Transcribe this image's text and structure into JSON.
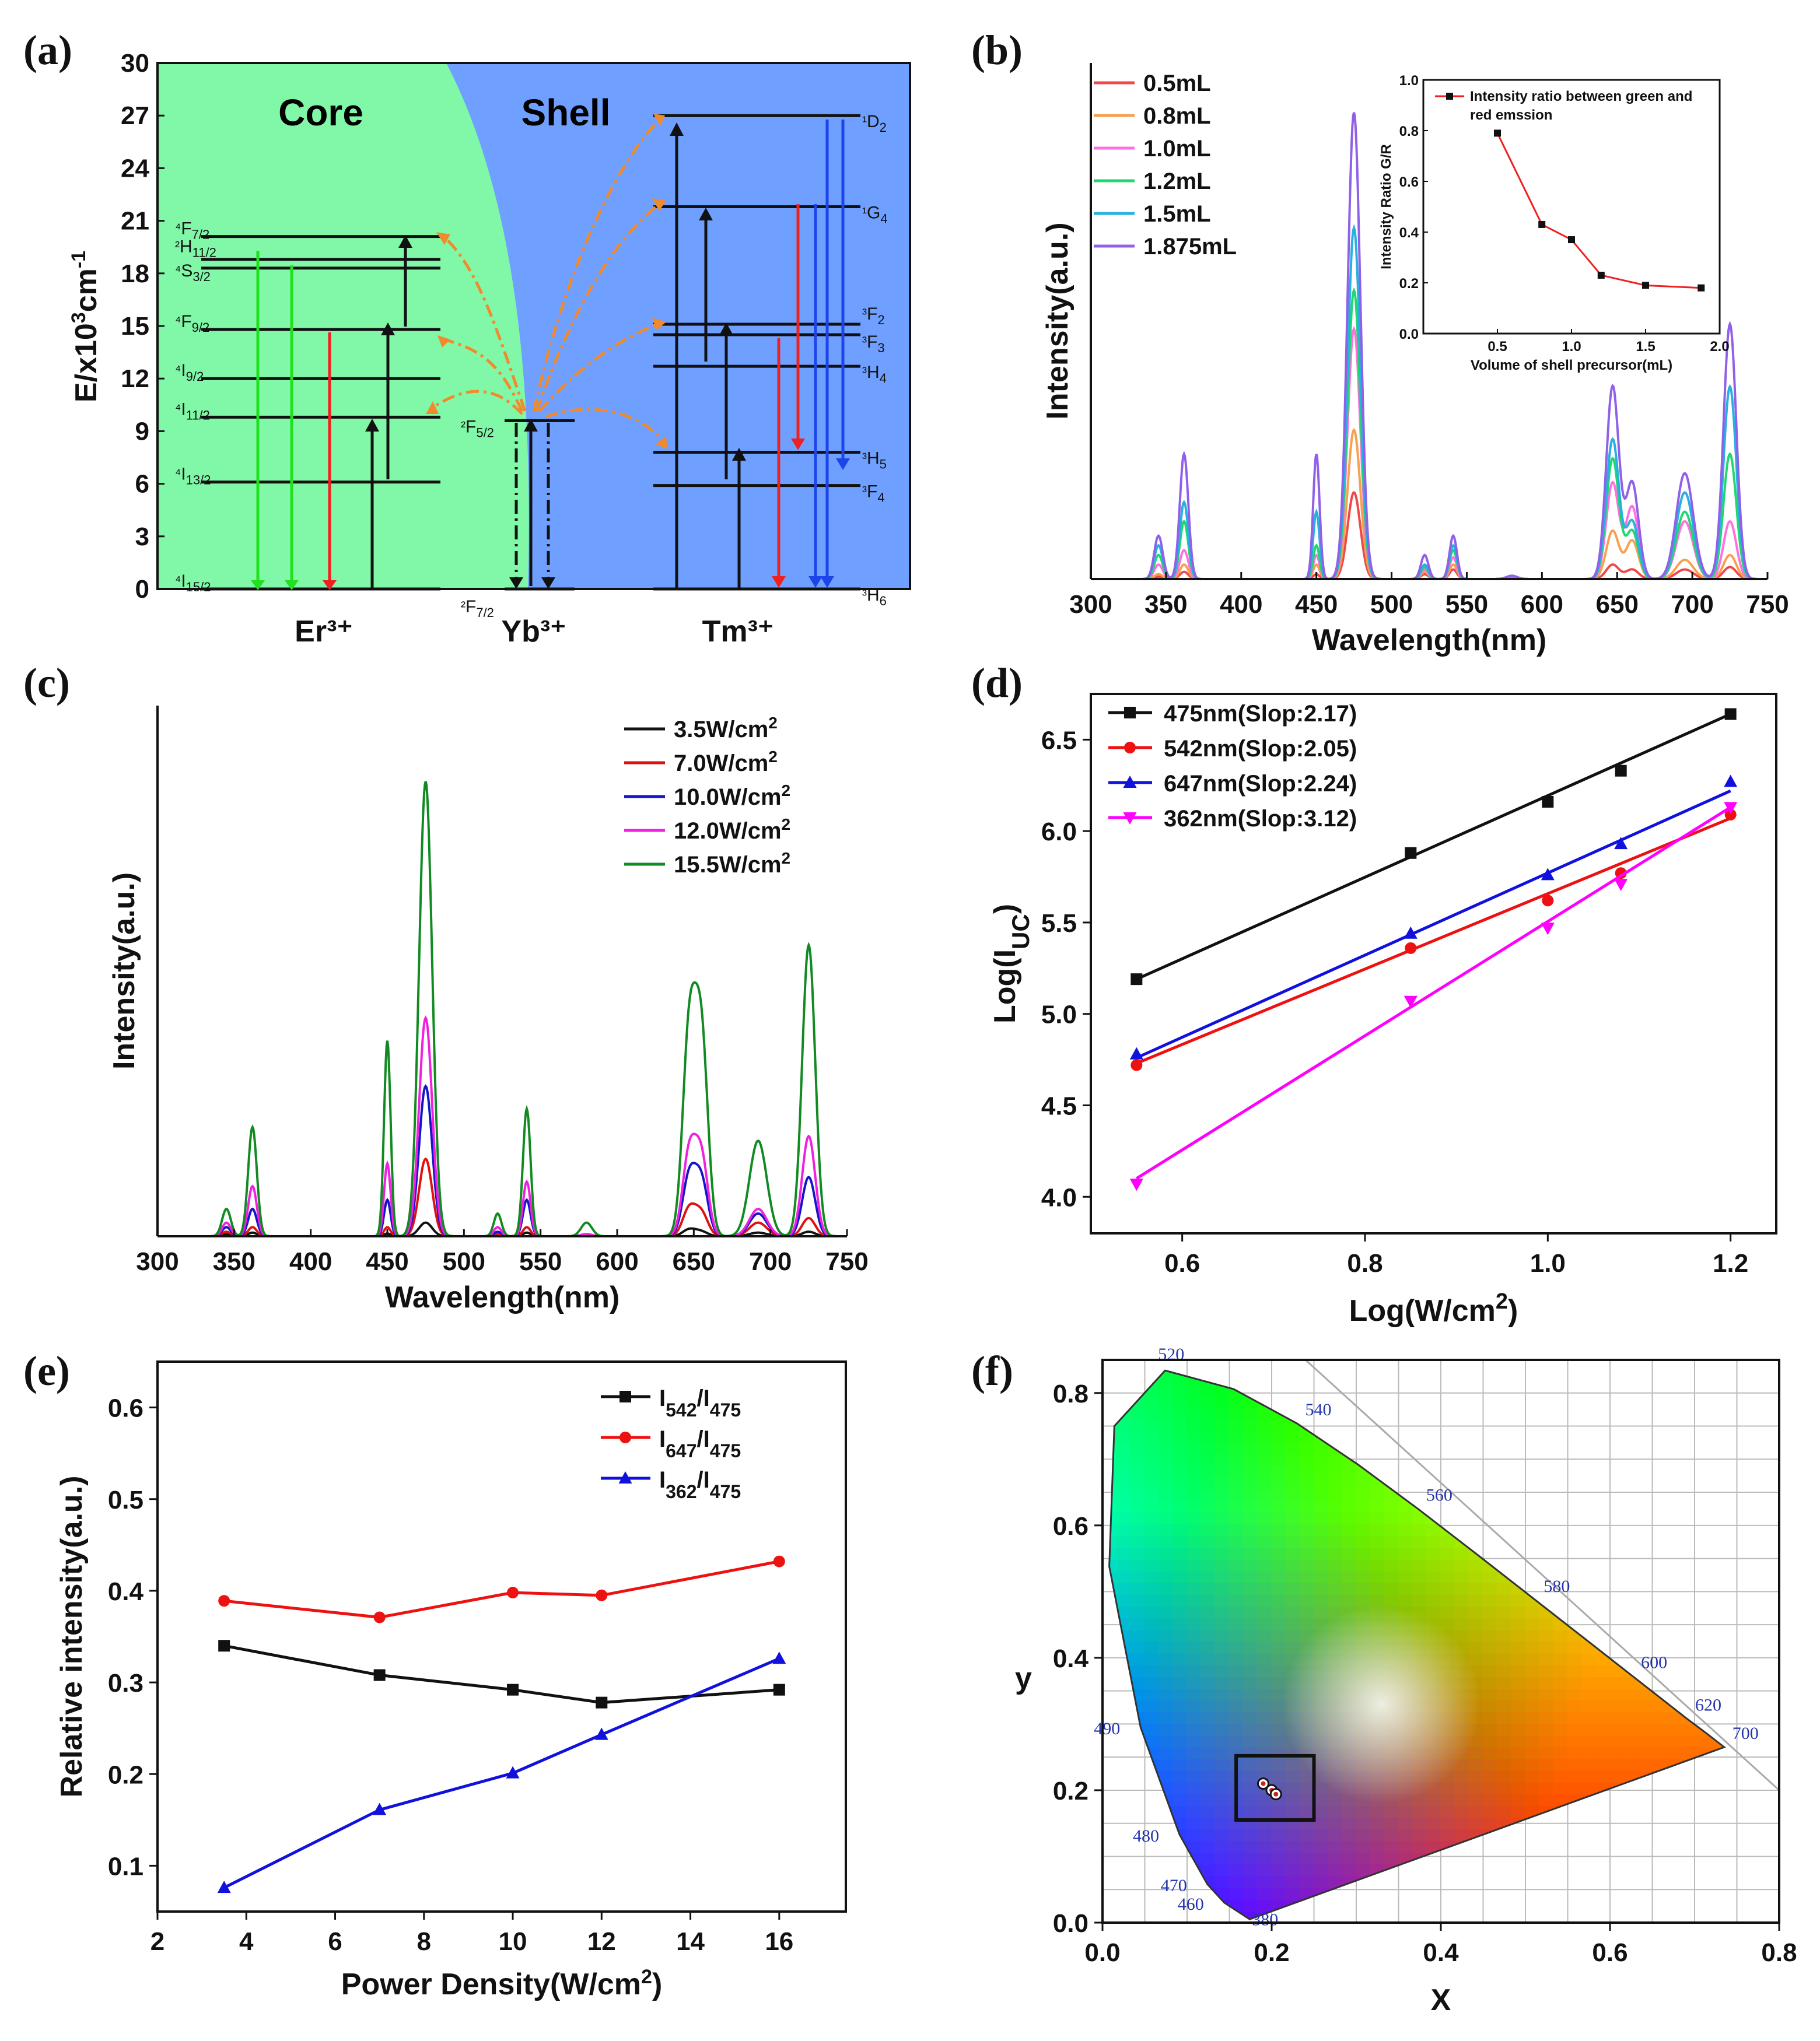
{
  "chart_data": [
    {
      "panel": "(a)",
      "type": "energy-level-diagram",
      "ylabel": "E/x10³cm⁻¹",
      "yticks": [
        0,
        3,
        6,
        9,
        12,
        15,
        18,
        21,
        24,
        27,
        30
      ],
      "regions": [
        "Core",
        "Shell"
      ],
      "ions": [
        "Er³⁺",
        "Yb³⁺",
        "Tm³⁺"
      ],
      "er_levels": [
        {
          "label": "⁴I15/2",
          "e": 0
        },
        {
          "label": "⁴I13/2",
          "e": 6.1
        },
        {
          "label": "⁴I11/2",
          "e": 9.8
        },
        {
          "label": "⁴I9/2",
          "e": 12
        },
        {
          "label": "⁴F9/2",
          "e": 14.8
        },
        {
          "label": "⁴S3/2",
          "e": 18.3
        },
        {
          "label": "²H11/2",
          "e": 18.8
        },
        {
          "label": "⁴F7/2",
          "e": 20.1
        }
      ],
      "yb_levels": [
        {
          "label": "²F7/2",
          "e": 0
        },
        {
          "label": "²F5/2",
          "e": 9.6
        }
      ],
      "tm_levels": [
        {
          "label": "³H6",
          "e": 0
        },
        {
          "label": "³F4",
          "e": 5.9
        },
        {
          "label": "³H5",
          "e": 7.8
        },
        {
          "label": "³H4",
          "e": 12.7
        },
        {
          "label": "³F3",
          "e": 14.5
        },
        {
          "label": "³F2",
          "e": 15.1
        },
        {
          "label": "¹G4",
          "e": 21.8
        },
        {
          "label": "¹D2",
          "e": 27
        }
      ]
    },
    {
      "panel": "(b)",
      "type": "line",
      "xlabel": "Wavelength(nm)",
      "ylabel": "Intensity(a.u.)",
      "xlim": [
        300,
        750
      ],
      "xticks": [
        300,
        350,
        400,
        450,
        500,
        550,
        600,
        650,
        700,
        750
      ],
      "peaks": [
        345,
        362,
        450,
        475,
        522,
        541,
        580,
        647,
        660,
        695,
        725
      ],
      "series": [
        {
          "name": "0.5mL",
          "color": "#f04848",
          "heights": [
            0.005,
            0.015,
            0.01,
            0.18,
            0.01,
            0.02,
            0.002,
            0.03,
            0.02,
            0.02,
            0.025
          ]
        },
        {
          "name": "0.8mL",
          "color": "#f6a050",
          "heights": [
            0.01,
            0.03,
            0.03,
            0.31,
            0.015,
            0.03,
            0.003,
            0.1,
            0.08,
            0.04,
            0.05
          ]
        },
        {
          "name": "1.0mL",
          "color": "#ff70e0",
          "heights": [
            0.03,
            0.06,
            0.05,
            0.52,
            0.02,
            0.045,
            0.004,
            0.2,
            0.15,
            0.12,
            0.12
          ]
        },
        {
          "name": "1.2mL",
          "color": "#20d870",
          "heights": [
            0.05,
            0.12,
            0.07,
            0.6,
            0.025,
            0.06,
            0.005,
            0.25,
            0.1,
            0.14,
            0.26
          ]
        },
        {
          "name": "1.5mL",
          "color": "#28b0e0",
          "heights": [
            0.07,
            0.16,
            0.14,
            0.73,
            0.03,
            0.07,
            0.006,
            0.29,
            0.12,
            0.18,
            0.4
          ]
        },
        {
          "name": "1.875mL",
          "color": "#9060e8",
          "heights": [
            0.09,
            0.26,
            0.26,
            0.97,
            0.05,
            0.09,
            0.007,
            0.4,
            0.2,
            0.22,
            0.53
          ]
        }
      ],
      "inset": {
        "type": "line",
        "legend": "Intensity ratio between green and red emssion",
        "xlabel": "Volume of shell precursor(mL)",
        "ylabel": "Intensity Ratio G/R",
        "xlim": [
          0,
          2.0
        ],
        "ylim": [
          0,
          1.0
        ],
        "xticks": [
          0.5,
          1.0,
          1.5,
          2.0
        ],
        "yticks": [
          0.0,
          0.2,
          0.4,
          0.6,
          0.8,
          1.0
        ],
        "x": [
          0.5,
          0.8,
          1.0,
          1.2,
          1.5,
          1.875
        ],
        "y": [
          0.79,
          0.43,
          0.37,
          0.23,
          0.19,
          0.18
        ]
      }
    },
    {
      "panel": "(c)",
      "type": "line",
      "xlabel": "Wavelength(nm)",
      "ylabel": "Intensity(a.u.)",
      "xlim": [
        300,
        750
      ],
      "xticks": [
        300,
        350,
        400,
        450,
        500,
        550,
        600,
        650,
        700,
        750
      ],
      "peaks": [
        345,
        362,
        450,
        475,
        522,
        541,
        580,
        647,
        655,
        692,
        725
      ],
      "series": [
        {
          "name": "3.5W/cm²",
          "color": "#111111",
          "heights": [
            0.004,
            0.008,
            0.006,
            0.03,
            0.003,
            0.008,
            0.001,
            0.015,
            0.01,
            0.008,
            0.01
          ]
        },
        {
          "name": "7.0W/cm²",
          "color": "#e01010",
          "heights": [
            0.01,
            0.02,
            0.02,
            0.17,
            0.005,
            0.02,
            0.002,
            0.06,
            0.05,
            0.03,
            0.04
          ]
        },
        {
          "name": "10.0W/cm²",
          "color": "#1414c8",
          "heights": [
            0.02,
            0.06,
            0.08,
            0.33,
            0.01,
            0.08,
            0.004,
            0.13,
            0.12,
            0.05,
            0.13
          ]
        },
        {
          "name": "12.0W/cm²",
          "color": "#f020e0",
          "heights": [
            0.03,
            0.11,
            0.16,
            0.48,
            0.02,
            0.12,
            0.005,
            0.18,
            0.17,
            0.06,
            0.22
          ]
        },
        {
          "name": "15.5W/cm²",
          "color": "#118a22",
          "heights": [
            0.06,
            0.24,
            0.43,
            1.0,
            0.05,
            0.28,
            0.03,
            0.44,
            0.43,
            0.21,
            0.64
          ]
        }
      ]
    },
    {
      "panel": "(d)",
      "type": "scatter",
      "xlabel": "Log(W/cm²)",
      "ylabel": "Log(I_UC)",
      "xlim": [
        0.5,
        1.25
      ],
      "ylim": [
        3.8,
        6.75
      ],
      "xticks": [
        0.6,
        0.8,
        1.0,
        1.2
      ],
      "yticks": [
        4.0,
        4.5,
        5.0,
        5.5,
        6.0,
        6.5
      ],
      "x": [
        0.55,
        0.85,
        1.0,
        1.08,
        1.2
      ],
      "series": [
        {
          "name": "475nm(Slop:2.17)",
          "color": "#111111",
          "marker": "square",
          "y": [
            5.19,
            5.88,
            6.16,
            6.33,
            6.64
          ],
          "fit": [
            5.19,
            6.64
          ]
        },
        {
          "name": "542nm(Slop:2.05)",
          "color": "#ee1111",
          "marker": "circle",
          "y": [
            4.72,
            5.36,
            5.62,
            5.77,
            6.09
          ],
          "fit": [
            4.73,
            6.07
          ]
        },
        {
          "name": "647nm(Slop:2.24)",
          "color": "#1111dd",
          "marker": "triangle",
          "y": [
            4.78,
            5.44,
            5.76,
            5.93,
            6.27
          ],
          "fit": [
            4.76,
            6.22
          ]
        },
        {
          "name": "362nm(Slop:3.12)",
          "color": "#ff00ff",
          "marker": "triangle-down",
          "y": [
            4.07,
            5.07,
            5.47,
            5.71,
            6.13
          ],
          "fit": [
            4.1,
            6.13
          ]
        }
      ]
    },
    {
      "panel": "(e)",
      "type": "line",
      "xlabel": "Power Density(W/cm²)",
      "ylabel": "Relative intensity(a.u.)",
      "xlim": [
        2,
        17.5
      ],
      "ylim": [
        0.05,
        0.65
      ],
      "xticks": [
        2,
        4,
        6,
        8,
        10,
        12,
        14,
        16
      ],
      "yticks": [
        0.1,
        0.2,
        0.3,
        0.4,
        0.5,
        0.6
      ],
      "x": [
        3.5,
        7.0,
        10.0,
        12.0,
        16.0
      ],
      "series": [
        {
          "name": "I542/I475",
          "base": "I",
          "sub1": "542",
          "sep": "/I",
          "sub2": "475",
          "color": "#111111",
          "marker": "square",
          "y": [
            0.34,
            0.308,
            0.292,
            0.278,
            0.292
          ]
        },
        {
          "name": "I647/I475",
          "base": "I",
          "sub1": "647",
          "sep": "/I",
          "sub2": "475",
          "color": "#ee1111",
          "marker": "circle",
          "y": [
            0.389,
            0.371,
            0.398,
            0.395,
            0.432
          ]
        },
        {
          "name": "I362/I475",
          "base": "I",
          "sub1": "362",
          "sep": "/I",
          "sub2": "475",
          "color": "#1111dd",
          "marker": "triangle",
          "y": [
            0.076,
            0.161,
            0.201,
            0.243,
            0.326
          ]
        }
      ]
    },
    {
      "panel": "(f)",
      "type": "cie-chromaticity",
      "xlabel": "X",
      "ylabel": "y",
      "xlim": [
        0,
        0.8
      ],
      "ylim": [
        0,
        0.85
      ],
      "xticks": [
        0.0,
        0.2,
        0.4,
        0.6,
        0.8
      ],
      "yticks": [
        0.0,
        0.2,
        0.4,
        0.6,
        0.8
      ],
      "wavelength_labels": [
        {
          "nm": "380",
          "x": 0.174,
          "y": 0.005
        },
        {
          "nm": "460",
          "x": 0.144,
          "y": 0.03
        },
        {
          "nm": "470",
          "x": 0.124,
          "y": 0.058
        },
        {
          "nm": "480",
          "x": 0.091,
          "y": 0.133
        },
        {
          "nm": "490",
          "x": 0.045,
          "y": 0.295
        },
        {
          "nm": "520",
          "x": 0.074,
          "y": 0.834
        },
        {
          "nm": "540",
          "x": 0.23,
          "y": 0.754
        },
        {
          "nm": "560",
          "x": 0.373,
          "y": 0.625
        },
        {
          "nm": "580",
          "x": 0.512,
          "y": 0.487
        },
        {
          "nm": "600",
          "x": 0.627,
          "y": 0.372
        },
        {
          "nm": "620",
          "x": 0.691,
          "y": 0.308
        },
        {
          "nm": "700",
          "x": 0.735,
          "y": 0.265
        }
      ],
      "locus_x": [
        0.174,
        0.144,
        0.124,
        0.091,
        0.045,
        0.008,
        0.014,
        0.074,
        0.155,
        0.23,
        0.302,
        0.373,
        0.441,
        0.512,
        0.575,
        0.627,
        0.665,
        0.691,
        0.714,
        0.735
      ],
      "locus_y": [
        0.005,
        0.03,
        0.058,
        0.133,
        0.295,
        0.538,
        0.75,
        0.834,
        0.806,
        0.754,
        0.692,
        0.625,
        0.558,
        0.487,
        0.424,
        0.372,
        0.334,
        0.308,
        0.286,
        0.265
      ],
      "points": [
        {
          "x": 0.19,
          "y": 0.21
        },
        {
          "x": 0.2,
          "y": 0.2
        },
        {
          "x": 0.205,
          "y": 0.194
        }
      ]
    }
  ]
}
